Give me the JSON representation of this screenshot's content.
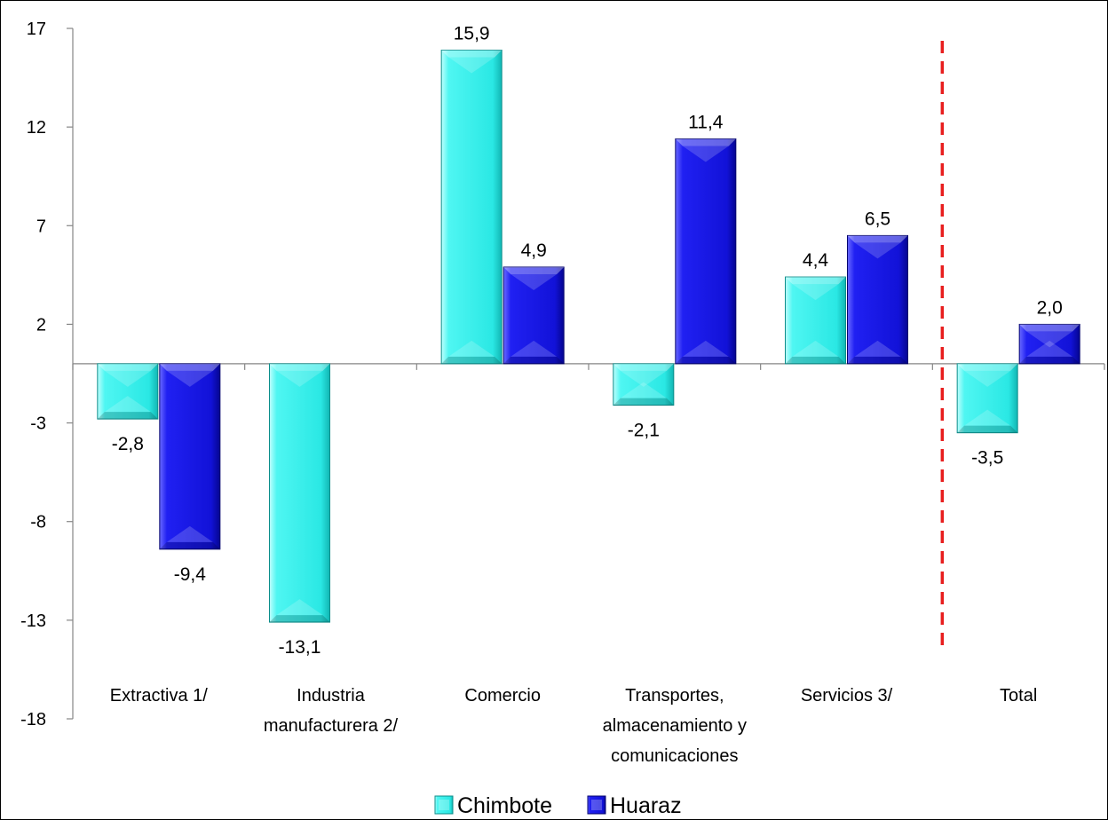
{
  "chart_data": {
    "type": "bar",
    "categories": [
      [
        "Extractiva 1/"
      ],
      [
        "Industria",
        "manufacturera 2/"
      ],
      [
        "Comercio"
      ],
      [
        "Transportes,",
        "almacenamiento y",
        "comunicaciones"
      ],
      [
        "Servicios 3/"
      ],
      [
        "Total"
      ]
    ],
    "series": [
      {
        "name": "Chimbote",
        "values": [
          -2.8,
          -13.1,
          15.9,
          -2.1,
          4.4,
          -3.5
        ],
        "labels": [
          "-2,8",
          "-13,1",
          "15,9",
          "-2,1",
          "4,4",
          "-3,5"
        ],
        "color": "#33f3ef"
      },
      {
        "name": "Huaraz",
        "values": [
          -9.4,
          null,
          4.9,
          11.4,
          6.5,
          2.0
        ],
        "labels": [
          "-9,4",
          "",
          "4,9",
          "11,4",
          "6,5",
          "2,0"
        ],
        "color": "#1313e0"
      }
    ],
    "y_ticks": [
      17,
      12,
      7,
      2,
      -3,
      -8,
      -13,
      -18
    ],
    "ylim": [
      -18,
      17
    ],
    "grid": false,
    "reference_line": {
      "between": "Servicios 3/|Total",
      "color": "#e81e1e",
      "style": "dashed"
    },
    "legend": {
      "position": "bottom-center"
    }
  }
}
